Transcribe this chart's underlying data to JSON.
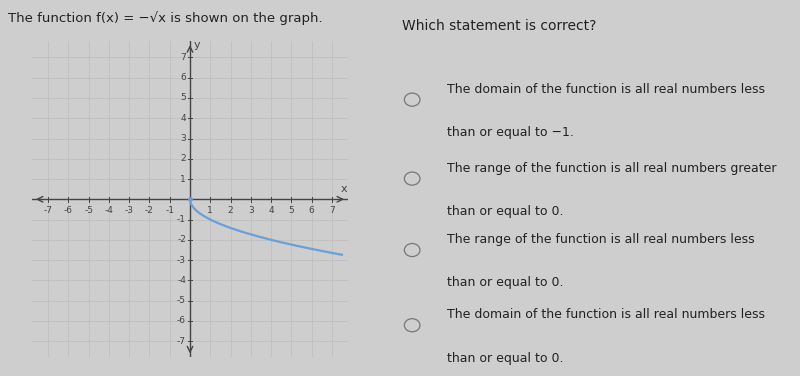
{
  "title_left": "The function f(x) = −√x is shown on the graph.",
  "title_right": "Which statement is correct?",
  "options": [
    [
      "The domain of the function is all real numbers less",
      "than or equal to −1."
    ],
    [
      "The range of the function is all real numbers greater",
      "than or equal to 0."
    ],
    [
      "The range of the function is all real numbers less",
      "than or equal to 0."
    ],
    [
      "The domain of the function is all real numbers less",
      "than or equal to 0."
    ]
  ],
  "bg_color": "#cecece",
  "left_panel_color": "#dcdcdc",
  "right_panel_color": "#dedede",
  "grid_color": "#bcbcbc",
  "axis_color": "#444444",
  "curve_color": "#6a9fd8",
  "text_color": "#222222",
  "circle_color": "#777777",
  "x_ticks": [
    -7,
    -6,
    -5,
    -4,
    -3,
    -2,
    -1,
    1,
    2,
    3,
    4,
    5,
    6,
    7
  ],
  "y_ticks": [
    -7,
    -6,
    -5,
    -4,
    -3,
    -2,
    -1,
    1,
    2,
    3,
    4,
    5,
    6,
    7
  ],
  "font_size_title": 9.5,
  "font_size_options": 9.0,
  "font_size_ticks": 6.5,
  "font_size_axis_label": 8
}
